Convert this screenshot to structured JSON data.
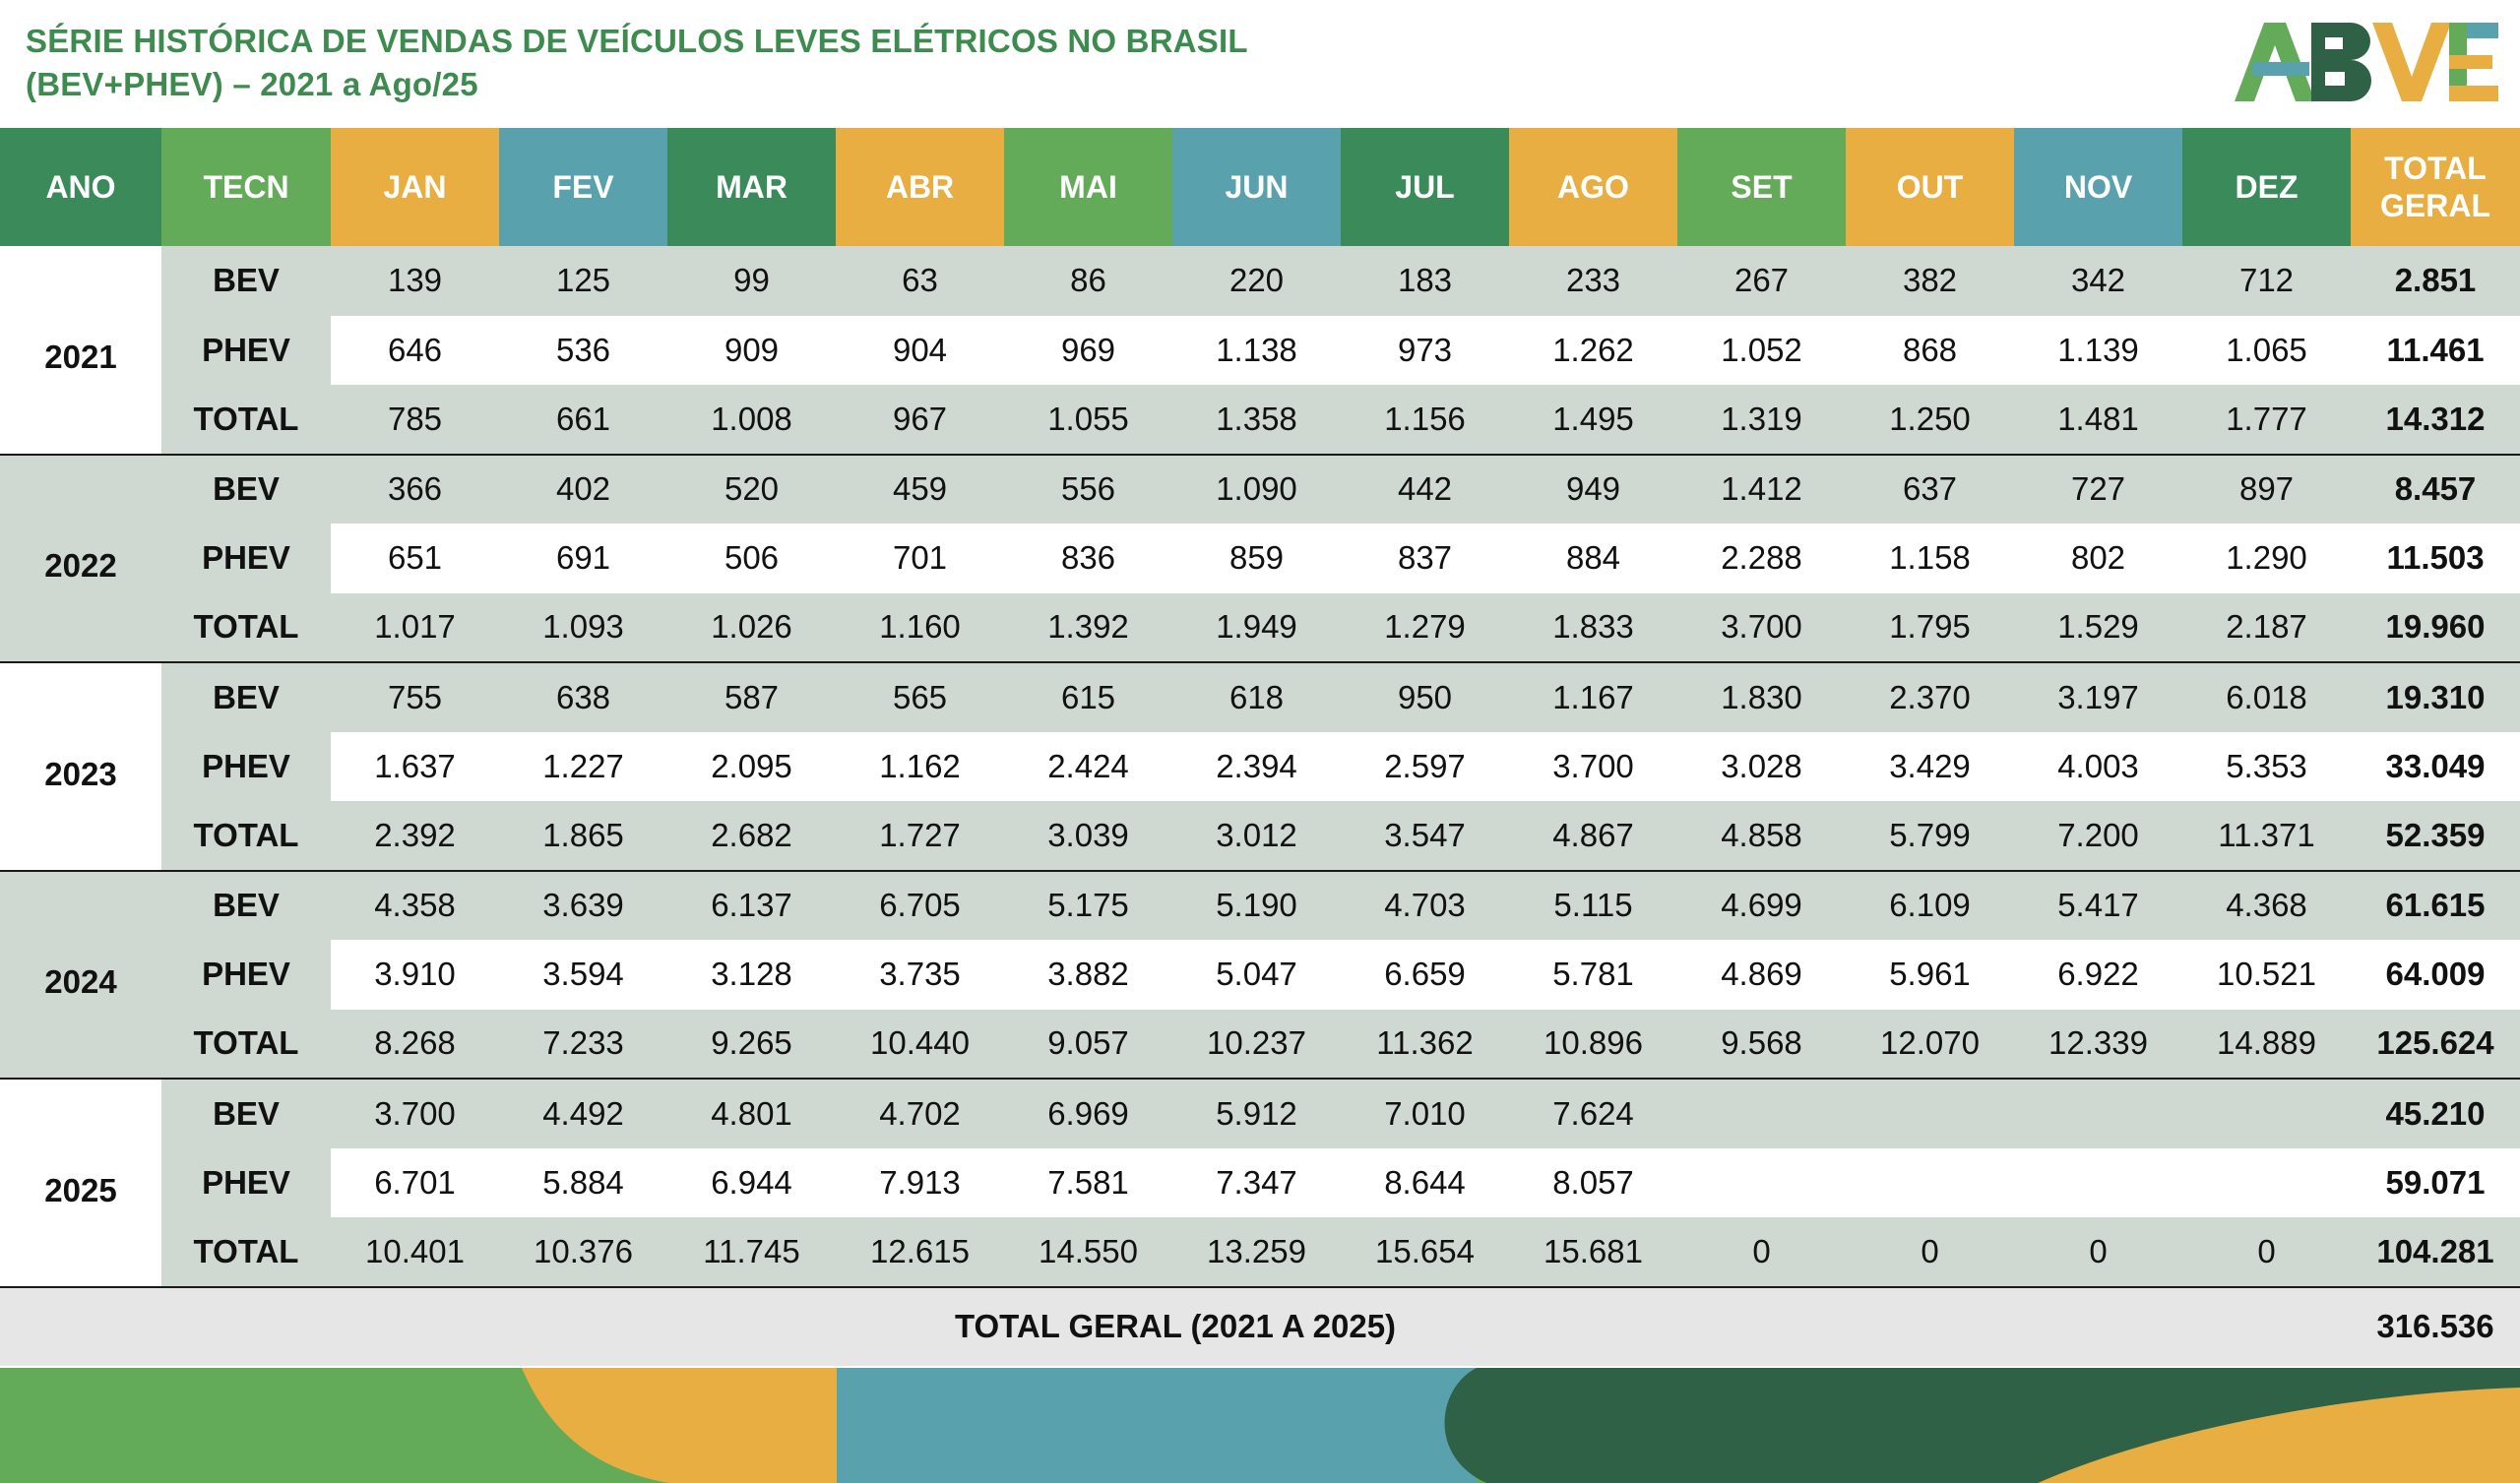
{
  "title_line1": "SÉRIE HISTÓRICA DE VENDAS DE VEÍCULOS LEVES ELÉTRICOS NO BRASIL",
  "title_line2": "(BEV+PHEV) – 2021 a Ago/25",
  "logo_text": "ABVE",
  "colors": {
    "dark_green": "#3b8a5a",
    "green": "#63aa59",
    "yellow": "#e9ae42",
    "teal": "#5aa1ae",
    "forest": "#2f6146",
    "title": "#3e8b4f"
  },
  "headers": [
    "ANO",
    "TECN",
    "JAN",
    "FEV",
    "MAR",
    "ABR",
    "MAI",
    "JUN",
    "JUL",
    "AGO",
    "SET",
    "OUT",
    "NOV",
    "DEZ",
    "TOTAL GERAL"
  ],
  "years": [
    {
      "year": "2021",
      "rows": [
        {
          "tec": "BEV",
          "values": [
            "139",
            "125",
            "99",
            "63",
            "86",
            "220",
            "183",
            "233",
            "267",
            "382",
            "342",
            "712"
          ],
          "total": "2.851"
        },
        {
          "tec": "PHEV",
          "values": [
            "646",
            "536",
            "909",
            "904",
            "969",
            "1.138",
            "973",
            "1.262",
            "1.052",
            "868",
            "1.139",
            "1.065"
          ],
          "total": "11.461"
        },
        {
          "tec": "TOTAL",
          "values": [
            "785",
            "661",
            "1.008",
            "967",
            "1.055",
            "1.358",
            "1.156",
            "1.495",
            "1.319",
            "1.250",
            "1.481",
            "1.777"
          ],
          "total": "14.312"
        }
      ]
    },
    {
      "year": "2022",
      "rows": [
        {
          "tec": "BEV",
          "values": [
            "366",
            "402",
            "520",
            "459",
            "556",
            "1.090",
            "442",
            "949",
            "1.412",
            "637",
            "727",
            "897"
          ],
          "total": "8.457"
        },
        {
          "tec": "PHEV",
          "values": [
            "651",
            "691",
            "506",
            "701",
            "836",
            "859",
            "837",
            "884",
            "2.288",
            "1.158",
            "802",
            "1.290"
          ],
          "total": "11.503"
        },
        {
          "tec": "TOTAL",
          "values": [
            "1.017",
            "1.093",
            "1.026",
            "1.160",
            "1.392",
            "1.949",
            "1.279",
            "1.833",
            "3.700",
            "1.795",
            "1.529",
            "2.187"
          ],
          "total": "19.960"
        }
      ]
    },
    {
      "year": "2023",
      "rows": [
        {
          "tec": "BEV",
          "values": [
            "755",
            "638",
            "587",
            "565",
            "615",
            "618",
            "950",
            "1.167",
            "1.830",
            "2.370",
            "3.197",
            "6.018"
          ],
          "total": "19.310"
        },
        {
          "tec": "PHEV",
          "values": [
            "1.637",
            "1.227",
            "2.095",
            "1.162",
            "2.424",
            "2.394",
            "2.597",
            "3.700",
            "3.028",
            "3.429",
            "4.003",
            "5.353"
          ],
          "total": "33.049"
        },
        {
          "tec": "TOTAL",
          "values": [
            "2.392",
            "1.865",
            "2.682",
            "1.727",
            "3.039",
            "3.012",
            "3.547",
            "4.867",
            "4.858",
            "5.799",
            "7.200",
            "11.371"
          ],
          "total": "52.359"
        }
      ]
    },
    {
      "year": "2024",
      "rows": [
        {
          "tec": "BEV",
          "values": [
            "4.358",
            "3.639",
            "6.137",
            "6.705",
            "5.175",
            "5.190",
            "4.703",
            "5.115",
            "4.699",
            "6.109",
            "5.417",
            "4.368"
          ],
          "total": "61.615"
        },
        {
          "tec": "PHEV",
          "values": [
            "3.910",
            "3.594",
            "3.128",
            "3.735",
            "3.882",
            "5.047",
            "6.659",
            "5.781",
            "4.869",
            "5.961",
            "6.922",
            "10.521"
          ],
          "total": "64.009"
        },
        {
          "tec": "TOTAL",
          "values": [
            "8.268",
            "7.233",
            "9.265",
            "10.440",
            "9.057",
            "10.237",
            "11.362",
            "10.896",
            "9.568",
            "12.070",
            "12.339",
            "14.889"
          ],
          "total": "125.624"
        }
      ]
    },
    {
      "year": "2025",
      "rows": [
        {
          "tec": "BEV",
          "values": [
            "3.700",
            "4.492",
            "4.801",
            "4.702",
            "6.969",
            "5.912",
            "7.010",
            "7.624",
            "",
            "",
            "",
            ""
          ],
          "total": "45.210"
        },
        {
          "tec": "PHEV",
          "values": [
            "6.701",
            "5.884",
            "6.944",
            "7.913",
            "7.581",
            "7.347",
            "8.644",
            "8.057",
            "",
            "",
            "",
            ""
          ],
          "total": "59.071"
        },
        {
          "tec": "TOTAL",
          "values": [
            "10.401",
            "10.376",
            "11.745",
            "12.615",
            "14.550",
            "13.259",
            "15.654",
            "15.681",
            "0",
            "0",
            "0",
            "0"
          ],
          "total": "104.281"
        }
      ]
    }
  ],
  "grand_total_label": "TOTAL GERAL (2021 A 2025)",
  "grand_total_value": "316.536"
}
